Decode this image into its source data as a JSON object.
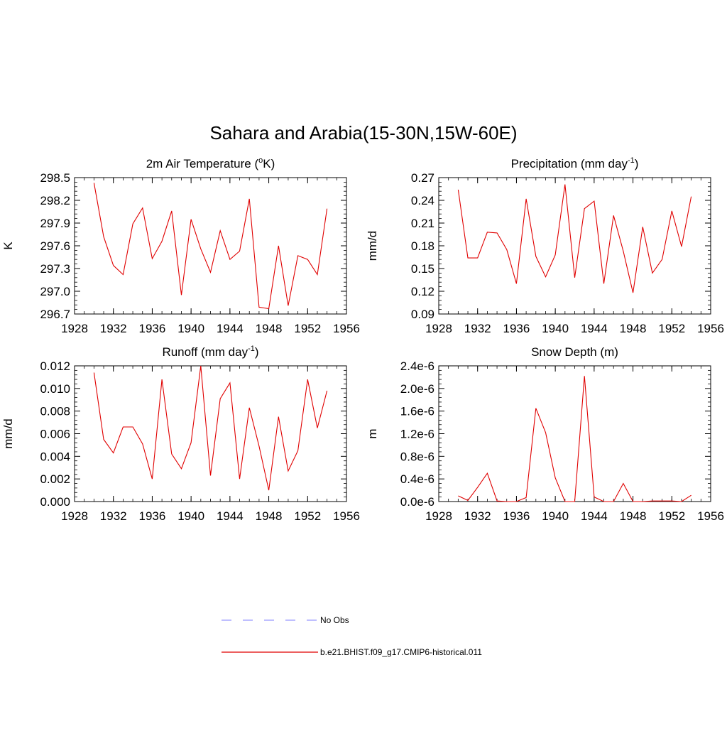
{
  "title": "Sahara and Arabia(15-30N,15W-60E)",
  "line_color": "#e00000",
  "obs_color": "#9999ff",
  "legend": {
    "obs_label": "No Obs",
    "model_label": "b.e21.BHIST.f09_g17.CMIP6-historical.011"
  },
  "chart_data": [
    {
      "type": "line",
      "title_main": "2m Air Temperature (",
      "title_sup": "o",
      "title_rest": "K)",
      "ylabel": "K",
      "xlim": [
        1928,
        1956
      ],
      "ylim": [
        296.7,
        298.5
      ],
      "xticks": [
        1928,
        1932,
        1936,
        1940,
        1944,
        1948,
        1952,
        1956
      ],
      "xtick_labels": [
        "1928",
        "1932",
        "1936",
        "1940",
        "1944",
        "1948",
        "1952",
        "1956"
      ],
      "yticks": [
        296.7,
        297.0,
        297.3,
        297.6,
        297.9,
        298.2,
        298.5
      ],
      "ytick_labels": [
        "296.7",
        "297.0",
        "297.3",
        "297.6",
        "297.9",
        "298.2",
        "298.5"
      ],
      "x": [
        1930,
        1931,
        1932,
        1933,
        1934,
        1935,
        1936,
        1937,
        1938,
        1939,
        1940,
        1941,
        1942,
        1943,
        1944,
        1945,
        1946,
        1947,
        1948,
        1949,
        1950,
        1951,
        1952,
        1953,
        1954
      ],
      "y": [
        298.43,
        297.72,
        297.34,
        297.22,
        297.89,
        298.1,
        297.43,
        297.66,
        298.06,
        296.95,
        297.95,
        297.56,
        297.25,
        297.8,
        297.42,
        297.53,
        298.22,
        296.79,
        296.77,
        297.6,
        296.81,
        297.47,
        297.42,
        297.22,
        298.09
      ]
    },
    {
      "type": "line",
      "title_main": "Precipitation (mm day",
      "title_sup": "-1",
      "title_rest": ")",
      "ylabel": "mm/d",
      "xlim": [
        1928,
        1956
      ],
      "ylim": [
        0.09,
        0.27
      ],
      "xticks": [
        1928,
        1932,
        1936,
        1940,
        1944,
        1948,
        1952,
        1956
      ],
      "xtick_labels": [
        "1928",
        "1932",
        "1936",
        "1940",
        "1944",
        "1948",
        "1952",
        "1956"
      ],
      "yticks": [
        0.09,
        0.12,
        0.15,
        0.18,
        0.21,
        0.24,
        0.27
      ],
      "ytick_labels": [
        "0.09",
        "0.12",
        "0.15",
        "0.18",
        "0.21",
        "0.24",
        "0.27"
      ],
      "x": [
        1930,
        1931,
        1932,
        1933,
        1934,
        1935,
        1936,
        1937,
        1938,
        1939,
        1940,
        1941,
        1942,
        1943,
        1944,
        1945,
        1946,
        1947,
        1948,
        1949,
        1950,
        1951,
        1952,
        1953,
        1954
      ],
      "y": [
        0.254,
        0.164,
        0.164,
        0.198,
        0.197,
        0.175,
        0.13,
        0.242,
        0.166,
        0.139,
        0.168,
        0.261,
        0.138,
        0.229,
        0.239,
        0.13,
        0.22,
        0.173,
        0.118,
        0.205,
        0.144,
        0.162,
        0.226,
        0.179,
        0.245
      ]
    },
    {
      "type": "line",
      "title_main": "Runoff (mm day",
      "title_sup": "-1",
      "title_rest": ")",
      "ylabel": "mm/d",
      "xlim": [
        1928,
        1956
      ],
      "ylim": [
        0.0,
        0.012
      ],
      "xticks": [
        1928,
        1932,
        1936,
        1940,
        1944,
        1948,
        1952,
        1956
      ],
      "xtick_labels": [
        "1928",
        "1932",
        "1936",
        "1940",
        "1944",
        "1948",
        "1952",
        "1956"
      ],
      "yticks": [
        0.0,
        0.002,
        0.004,
        0.006,
        0.008,
        0.01,
        0.012
      ],
      "ytick_labels": [
        "0.000",
        "0.002",
        "0.004",
        "0.006",
        "0.008",
        "0.010",
        "0.012"
      ],
      "x": [
        1930,
        1931,
        1932,
        1933,
        1934,
        1935,
        1936,
        1937,
        1938,
        1939,
        1940,
        1941,
        1942,
        1943,
        1944,
        1945,
        1946,
        1947,
        1948,
        1949,
        1950,
        1951,
        1952,
        1953,
        1954
      ],
      "y": [
        0.0114,
        0.0055,
        0.0043,
        0.0066,
        0.0066,
        0.0051,
        0.002,
        0.0108,
        0.0042,
        0.0029,
        0.0052,
        0.012,
        0.0023,
        0.0091,
        0.0105,
        0.002,
        0.0083,
        0.0049,
        0.001,
        0.0075,
        0.0027,
        0.0045,
        0.0108,
        0.0065,
        0.0098
      ]
    },
    {
      "type": "line",
      "title_main": "Snow Depth (m)",
      "title_sup": "",
      "title_rest": "",
      "ylabel": "m",
      "xlim": [
        1928,
        1956
      ],
      "ylim": [
        0.0,
        2.4e-06
      ],
      "xticks": [
        1928,
        1932,
        1936,
        1940,
        1944,
        1948,
        1952,
        1956
      ],
      "xtick_labels": [
        "1928",
        "1932",
        "1936",
        "1940",
        "1944",
        "1948",
        "1952",
        "1956"
      ],
      "yticks": [
        0.0,
        4e-07,
        8e-07,
        1.2e-06,
        1.6e-06,
        2e-06,
        2.4e-06
      ],
      "ytick_labels": [
        "0.0e-6",
        "0.4e-6",
        "0.8e-6",
        "1.2e-6",
        "1.6e-6",
        "2.0e-6",
        "2.4e-6"
      ],
      "x": [
        1930,
        1931,
        1932,
        1933,
        1934,
        1935,
        1936,
        1937,
        1938,
        1939,
        1940,
        1941,
        1942,
        1943,
        1944,
        1945,
        1946,
        1947,
        1948,
        1949,
        1950,
        1951,
        1952,
        1953,
        1954
      ],
      "y": [
        1e-07,
        2e-08,
        2.5e-07,
        5e-07,
        1e-08,
        0.0,
        0.0,
        7e-08,
        1.65e-06,
        1.22e-06,
        4.2e-07,
        0.0,
        0.0,
        2.22e-06,
        8e-08,
        0.0,
        0.0,
        3.2e-07,
        0.0,
        0.0,
        1e-08,
        1e-08,
        1e-08,
        0.0,
        1.1e-07
      ]
    }
  ]
}
